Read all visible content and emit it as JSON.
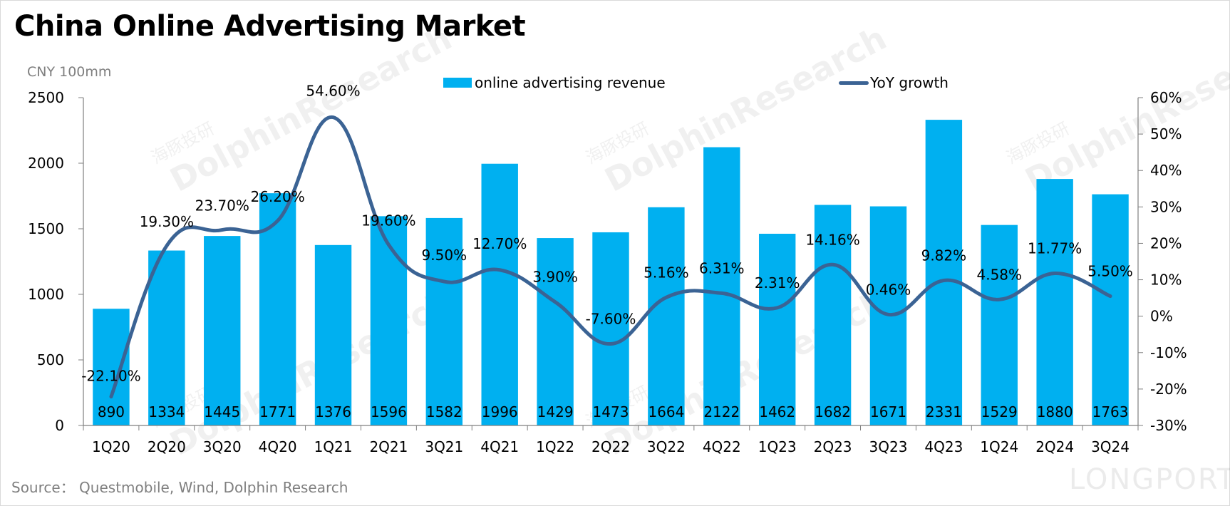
{
  "title": "China Online Advertising Market",
  "unit_label": "CNY 100mm",
  "source": "Source：  Questmobile, Wind, Dolphin Research",
  "watermark": {
    "brand": "DolphinResearch",
    "cn": "海豚投研",
    "corner": "LONGPORT"
  },
  "colors": {
    "bar": "#00b0f0",
    "line": "#3b6394",
    "axis": "#7f7f7f"
  },
  "chart_data": {
    "type": "bar",
    "categories": [
      "1Q20",
      "2Q20",
      "3Q20",
      "4Q20",
      "1Q21",
      "2Q21",
      "3Q21",
      "4Q21",
      "1Q22",
      "2Q22",
      "3Q22",
      "4Q22",
      "1Q23",
      "2Q23",
      "3Q23",
      "4Q23",
      "1Q24",
      "2Q24",
      "3Q24"
    ],
    "series": [
      {
        "name": "online advertising revenue",
        "type": "bar",
        "axis": "left",
        "values": [
          890,
          1334,
          1445,
          1771,
          1376,
          1596,
          1582,
          1996,
          1429,
          1473,
          1664,
          2122,
          1462,
          1682,
          1671,
          2331,
          1529,
          1880,
          1763
        ]
      },
      {
        "name": "YoY growth",
        "type": "line",
        "axis": "right",
        "values": [
          -22.1,
          19.3,
          23.7,
          26.2,
          54.6,
          19.6,
          9.5,
          12.7,
          3.9,
          -7.6,
          5.16,
          6.31,
          2.31,
          14.16,
          0.46,
          9.82,
          4.58,
          11.77,
          5.5
        ],
        "labels": [
          "-22.10%",
          "19.30%",
          "23.70%",
          "26.20%",
          "54.60%",
          "19.60%",
          "9.50%",
          "12.70%",
          "3.90%",
          "-7.60%",
          "5.16%",
          "6.31%",
          "2.31%",
          "14.16%",
          "0.46%",
          "9.82%",
          "4.58%",
          "11.77%",
          "5.50%"
        ]
      }
    ],
    "left_axis": {
      "ylim": [
        0,
        2500
      ],
      "ticks": [
        0,
        500,
        1000,
        1500,
        2000,
        2500
      ],
      "tick_labels": [
        "0",
        "500",
        "1000",
        "1500",
        "2000",
        "2500"
      ]
    },
    "right_axis": {
      "ylim": [
        -30,
        60
      ],
      "ticks": [
        -30,
        -20,
        -10,
        0,
        10,
        20,
        30,
        40,
        50,
        60
      ],
      "tick_labels": [
        "-30%",
        "-20%",
        "-10%",
        "0%",
        "10%",
        "20%",
        "30%",
        "40%",
        "50%",
        "60%"
      ]
    },
    "legend": "top-center",
    "grid": false
  }
}
